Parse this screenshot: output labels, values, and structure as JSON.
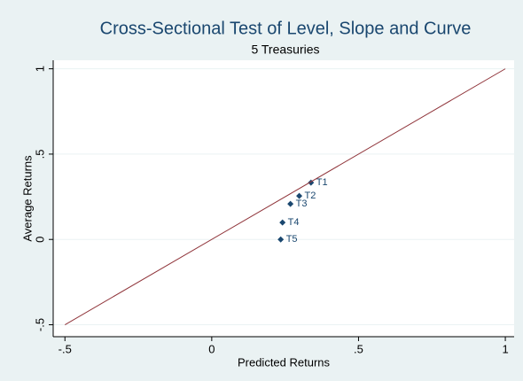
{
  "chart_data": {
    "type": "scatter",
    "title": "Cross-Sectional Test of Level, Slope and Curve",
    "subtitle": "5 Treasuries",
    "xlabel": "Predicted Returns",
    "ylabel": "Average Returns",
    "xlim": [
      -0.54,
      1.03
    ],
    "ylim": [
      -0.57,
      1.05
    ],
    "xticks": [
      {
        "value": -0.5,
        "label": "-.5"
      },
      0,
      {
        "value": 0.5,
        "label": ".5"
      },
      1
    ],
    "yticks": [
      {
        "value": -0.5,
        "label": "-.5"
      },
      0,
      {
        "value": 0.5,
        "label": ".5"
      },
      1
    ],
    "grid": true,
    "series": [
      {
        "type": "scatter",
        "color": "#1a476f",
        "x": [
          0.338,
          0.298,
          0.268,
          0.241,
          0.235
        ],
        "values": [
          0.333,
          0.255,
          0.208,
          0.099,
          0.0
        ],
        "labels": [
          "T1",
          "T2",
          "T3",
          "T4",
          "T5"
        ]
      },
      {
        "type": "line",
        "color": "#90353b",
        "x": [
          -0.5,
          1
        ],
        "values": [
          -0.5,
          1
        ]
      }
    ]
  }
}
